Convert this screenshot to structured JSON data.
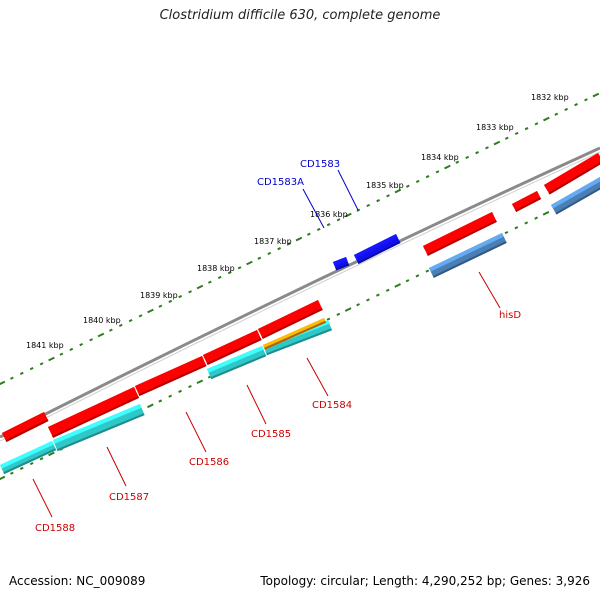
{
  "title": "Clostridium difficile 630, complete genome",
  "footer": {
    "accession": "Accession: NC_009089",
    "summary": "Topology: circular; Length: 4,290,252 bp; Genes: 3,926"
  },
  "colors": {
    "backbone": "#8a8a8a",
    "ticks": "#2e7d1e",
    "cds_forward": "#ff0000",
    "cds_reverse": "#2ec8c8",
    "cds_blue": "#1010ee",
    "steelblue": "#4a7fb5",
    "orange": "#ff8c00",
    "label_red": "#cc0000",
    "label_blue": "#0000cc"
  },
  "scale_labels": [
    "1832 kbp",
    "1833 kbp",
    "1834 kbp",
    "1835 kbp",
    "1836 kbp",
    "1837 kbp",
    "1838 kbp",
    "1839 kbp",
    "1840 kbp",
    "1841 kbp"
  ],
  "gene_labels": {
    "cd1583": "CD1583",
    "cd1583a": "CD1583A",
    "hisd": "hisD",
    "cd1584": "CD1584",
    "cd1585": "CD1585",
    "cd1586": "CD1586",
    "cd1587": "CD1587",
    "cd1588": "CD1588"
  }
}
